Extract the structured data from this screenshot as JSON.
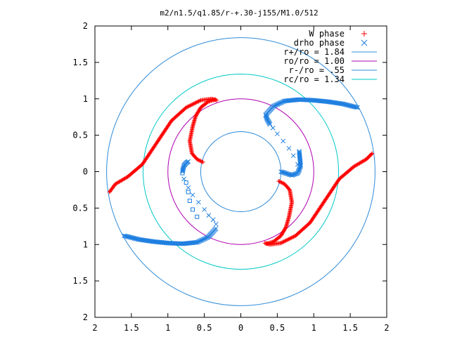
{
  "chart_data": {
    "type": "scatter",
    "title": "m2/n1.5/q1.85/r-+.30-j155/M1.0/512",
    "xlim": [
      -2,
      2
    ],
    "ylim": [
      -2,
      2
    ],
    "x_ticks": [
      -2,
      -1.5,
      -1,
      -0.5,
      0,
      0.5,
      1,
      1.5,
      2
    ],
    "y_ticks": [
      -2,
      -1.5,
      -1,
      -0.5,
      0,
      0.5,
      1,
      1.5,
      2
    ],
    "x_tick_labels": [
      "2",
      "1.5",
      "1",
      "0.5",
      "0",
      "0.5",
      "1",
      "1.5",
      "2"
    ],
    "y_tick_labels": [
      "2",
      "1.5",
      "1",
      "0.5",
      "0",
      "0.5",
      "1",
      "1.5",
      "2"
    ],
    "grid": false,
    "legend_position": "top-right",
    "legend": [
      {
        "label": "W phase",
        "kind": "points",
        "marker": "plus",
        "color": "#ff0000"
      },
      {
        "label": "drho phase",
        "kind": "points",
        "marker": "cross",
        "color": "#1e7fe0"
      },
      {
        "label": "r+/ro = 1.84",
        "kind": "line",
        "color": "#2f8bd8"
      },
      {
        "label": "ro/ro = 1.00",
        "kind": "line",
        "color": "#b000b0"
      },
      {
        "label": "r-/ro = .55",
        "kind": "line",
        "color": "#2f8bd8"
      },
      {
        "label": "rc/ro = 1.34",
        "kind": "line",
        "color": "#00c8c8"
      }
    ],
    "circles": [
      {
        "name": "r+/ro",
        "radius": 1.84,
        "color": "#2f8bd8"
      },
      {
        "name": "ro/ro",
        "radius": 1.0,
        "color": "#b000b0"
      },
      {
        "name": "r-/ro",
        "radius": 0.55,
        "color": "#2f8bd8"
      },
      {
        "name": "rc/ro",
        "radius": 1.34,
        "color": "#00c8c8"
      }
    ],
    "series": [
      {
        "name": "W phase",
        "color": "#ff0000",
        "marker": "plus",
        "polylines": [
          [
            [
              -1.8,
              -0.28
            ],
            [
              -1.72,
              -0.17
            ],
            [
              -1.55,
              -0.07
            ],
            [
              -1.35,
              0.1
            ],
            [
              -1.15,
              0.4
            ],
            [
              -0.95,
              0.7
            ],
            [
              -0.75,
              0.88
            ],
            [
              -0.55,
              0.98
            ],
            [
              -0.4,
              1.0
            ],
            [
              -0.33,
              0.98
            ]
          ],
          [
            [
              -0.35,
              0.99
            ],
            [
              -0.45,
              0.96
            ],
            [
              -0.55,
              0.88
            ],
            [
              -0.62,
              0.76
            ],
            [
              -0.66,
              0.62
            ],
            [
              -0.7,
              0.42
            ],
            [
              -0.67,
              0.25
            ],
            [
              -0.6,
              0.17
            ],
            [
              -0.52,
              0.13
            ]
          ],
          [
            [
              1.8,
              0.25
            ],
            [
              1.72,
              0.17
            ],
            [
              1.55,
              0.07
            ],
            [
              1.35,
              -0.1
            ],
            [
              1.15,
              -0.4
            ],
            [
              0.95,
              -0.7
            ],
            [
              0.75,
              -0.88
            ],
            [
              0.55,
              -0.98
            ],
            [
              0.4,
              -1.0
            ],
            [
              0.33,
              -0.98
            ]
          ],
          [
            [
              0.35,
              -0.99
            ],
            [
              0.45,
              -0.96
            ],
            [
              0.55,
              -0.88
            ],
            [
              0.62,
              -0.76
            ],
            [
              0.66,
              -0.62
            ],
            [
              0.7,
              -0.42
            ],
            [
              0.67,
              -0.25
            ],
            [
              0.6,
              -0.17
            ],
            [
              0.52,
              -0.13
            ]
          ]
        ]
      },
      {
        "name": "drho phase",
        "color": "#1e7fe0",
        "marker": "cross",
        "polylines": [
          [
            [
              0.34,
              0.78
            ],
            [
              0.45,
              0.9
            ],
            [
              0.6,
              0.97
            ],
            [
              0.8,
              0.99
            ],
            [
              1.0,
              0.98
            ],
            [
              1.2,
              0.96
            ],
            [
              1.4,
              0.93
            ],
            [
              1.6,
              0.88
            ]
          ],
          [
            [
              0.34,
              0.78
            ],
            [
              0.36,
              0.72
            ],
            [
              0.4,
              0.65
            ]
          ],
          [
            [
              0.55,
              0.0
            ],
            [
              0.7,
              -0.05
            ],
            [
              0.78,
              -0.02
            ],
            [
              0.82,
              0.08
            ],
            [
              0.8,
              0.28
            ]
          ],
          [
            [
              -1.6,
              -0.88
            ],
            [
              -1.4,
              -0.93
            ],
            [
              -1.2,
              -0.96
            ],
            [
              -1.0,
              -0.98
            ],
            [
              -0.8,
              -0.99
            ],
            [
              -0.6,
              -0.97
            ],
            [
              -0.45,
              -0.9
            ],
            [
              -0.34,
              -0.78
            ]
          ],
          [
            [
              -0.8,
              0.0
            ],
            [
              -0.78,
              0.08
            ],
            [
              -0.75,
              0.12
            ],
            [
              -0.72,
              0.14
            ]
          ]
        ],
        "sparse_points": [
          [
            0.44,
            0.6
          ],
          [
            0.5,
            0.52
          ],
          [
            0.58,
            0.42
          ],
          [
            0.66,
            0.32
          ],
          [
            0.72,
            0.22
          ],
          [
            0.78,
            0.1
          ],
          [
            0.8,
            0.02
          ],
          [
            -0.34,
            -0.72
          ],
          [
            -0.38,
            -0.66
          ],
          [
            -0.44,
            -0.6
          ],
          [
            -0.5,
            -0.52
          ],
          [
            -0.58,
            -0.42
          ],
          [
            -0.66,
            -0.32
          ],
          [
            -0.72,
            -0.22
          ],
          [
            -0.78,
            -0.1
          ]
        ],
        "sparse_box_points": [
          [
            -0.8,
            -0.02
          ],
          [
            -0.75,
            -0.15
          ],
          [
            -0.72,
            -0.28
          ],
          [
            -0.7,
            -0.4
          ],
          [
            -0.66,
            -0.52
          ],
          [
            -0.6,
            -0.62
          ]
        ]
      }
    ]
  }
}
